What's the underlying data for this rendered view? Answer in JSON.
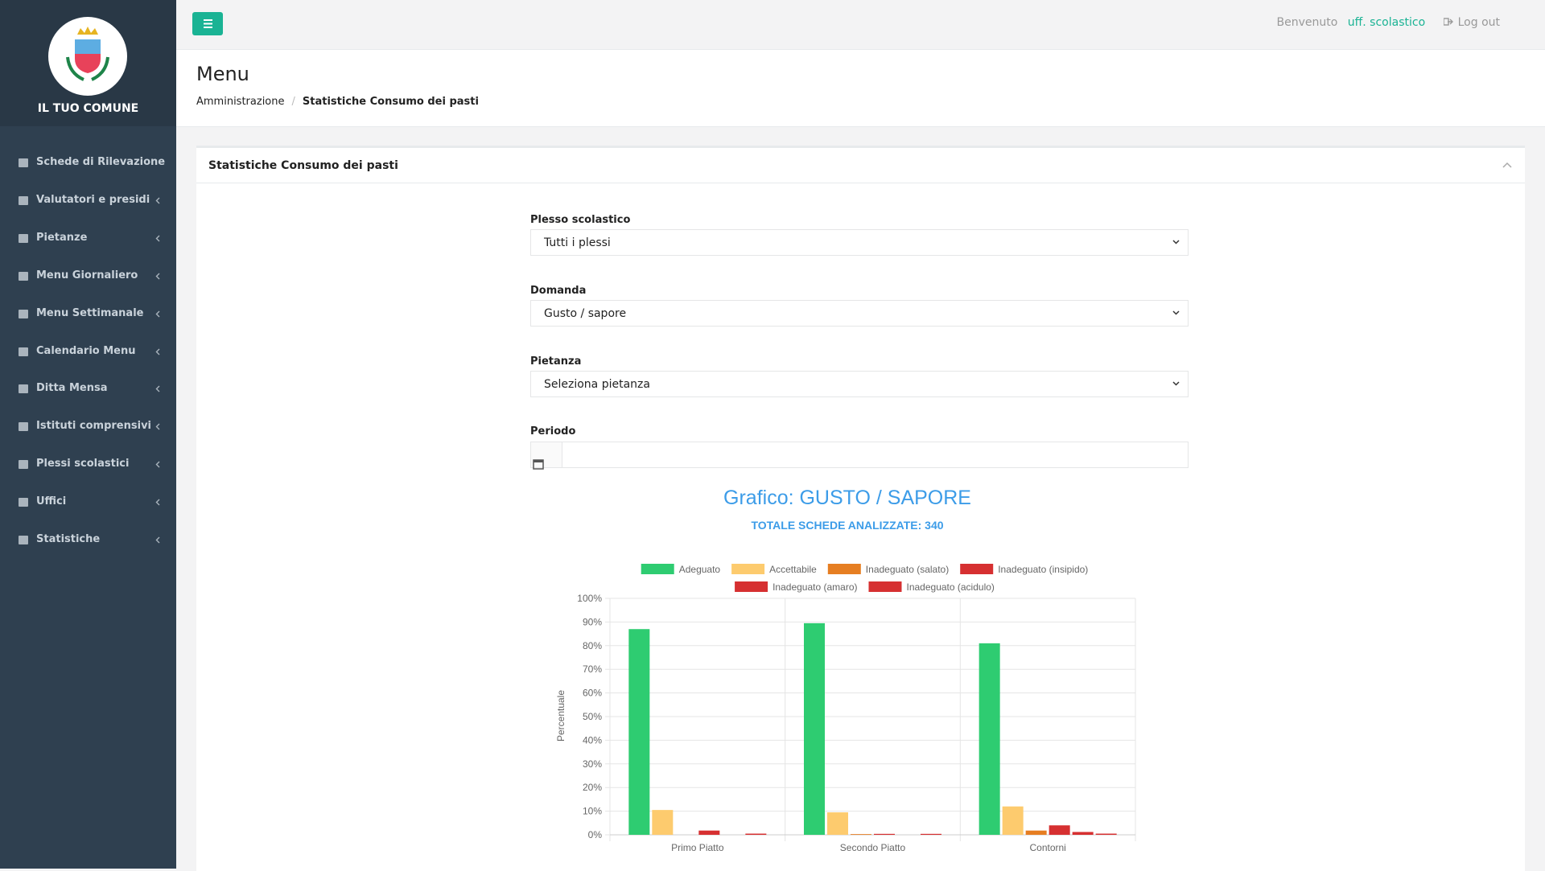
{
  "sidebar": {
    "brand": "IL TUO COMUNE",
    "items": [
      "Schede di Rilevazione",
      "Valutatori e presidi",
      "Pietanze",
      "Menu Giornaliero",
      "Menu Settimanale",
      "Calendario Menu",
      "Ditta Mensa",
      "Istituti comprensivi",
      "Plessi scolastici",
      "Uffici",
      "Statistiche"
    ]
  },
  "topbar": {
    "welcome": "Benvenuto",
    "user": "uff. scolastico",
    "logout": "Log out"
  },
  "header": {
    "title": "Menu",
    "breadcrumb": [
      "Amministrazione",
      "Statistiche Consumo dei pasti"
    ]
  },
  "panel": {
    "title": "Statistiche Consumo dei pasti"
  },
  "form": {
    "fields": [
      {
        "label": "Plesso scolastico",
        "value": "Tutti i plessi"
      },
      {
        "label": "Domanda",
        "value": "Gusto / sapore"
      },
      {
        "label": "Pietanza",
        "value": "Seleziona pietanza"
      }
    ],
    "period_label": "Periodo"
  },
  "chart_data": {
    "type": "bar",
    "title": "Grafico: GUSTO / SAPORE",
    "subtitle": "TOTALE SCHEDE ANALIZZATE: 340",
    "y_label": "Percentuale",
    "categories": [
      "Primo Piatto",
      "Secondo Piatto",
      "Contorni"
    ],
    "series": [
      {
        "name": "Adeguato",
        "color": "#2ecc71",
        "values": [
          87,
          89.5,
          81
        ]
      },
      {
        "name": "Accettabile",
        "color": "#fdcb6e",
        "values": [
          10.5,
          9.5,
          12
        ]
      },
      {
        "name": "Inadeguato (salato)",
        "color": "#e67e22",
        "values": [
          0,
          0.3,
          1.8
        ]
      },
      {
        "name": "Inadeguato (insipido)",
        "color": "#d63031",
        "values": [
          1.8,
          0.4,
          4
        ]
      },
      {
        "name": "Inadeguato (amaro)",
        "color": "#d63031",
        "values": [
          0,
          0,
          1.2
        ]
      },
      {
        "name": "Inadeguato (acidulo)",
        "color": "#d63031",
        "values": [
          0.5,
          0.4,
          0.5
        ]
      }
    ],
    "ylim": [
      0,
      100
    ],
    "yticks": [
      {
        "value": 0,
        "label": "0%"
      },
      {
        "value": 10,
        "label": "10%"
      },
      {
        "value": 20,
        "label": "20%"
      },
      {
        "value": 30,
        "label": "30%"
      },
      {
        "value": 40,
        "label": "40%"
      },
      {
        "value": 50,
        "label": "50%"
      },
      {
        "value": 60,
        "label": "60%"
      },
      {
        "value": 70,
        "label": "70%"
      },
      {
        "value": 80,
        "label": "80%"
      },
      {
        "value": 90,
        "label": "90%"
      },
      {
        "value": 100,
        "label": "100%"
      }
    ],
    "grid": true
  }
}
